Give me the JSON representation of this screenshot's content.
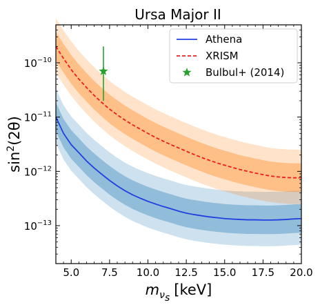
{
  "chart_data": {
    "type": "area",
    "title": "Ursa Major II",
    "xlabel": {
      "base": "m",
      "sub_base": "ν",
      "sub_sub": "s",
      "unit": "[keV]"
    },
    "ylabel": {
      "base": "sin",
      "sup": "2",
      "arg": "(2θ)"
    },
    "xlim": [
      4.0,
      20.0
    ],
    "ylim": [
      2e-14,
      5e-10
    ],
    "y_scale": "log",
    "x_ticks": [
      5.0,
      7.5,
      10.0,
      12.5,
      15.0,
      17.5,
      20.0
    ],
    "x_tick_labels": [
      "5.0",
      "7.5",
      "10.0",
      "12.5",
      "15.0",
      "17.5",
      "20.0"
    ],
    "y_ticks": [
      {
        "value": 1e-13,
        "base": "10",
        "exp": "−13"
      },
      {
        "value": 1e-12,
        "base": "10",
        "exp": "−12"
      },
      {
        "value": 1e-11,
        "base": "10",
        "exp": "−11"
      },
      {
        "value": 1e-10,
        "base": "10",
        "exp": "−10"
      }
    ],
    "grid": false,
    "legend_position": "top-right",
    "x": [
      4.0,
      4.5,
      5.0,
      5.5,
      6.0,
      6.5,
      7.0,
      7.5,
      8.0,
      8.5,
      9.0,
      9.5,
      10.0,
      10.5,
      11.0,
      11.5,
      12.0,
      12.5,
      13.0,
      13.5,
      14.0,
      14.5,
      15.0,
      15.5,
      16.0,
      16.5,
      17.0,
      17.5,
      18.0,
      18.5,
      19.0,
      19.5,
      20.0
    ],
    "series": [
      {
        "name": "Athena",
        "color": "#1f3fe0",
        "band_color": "#1f77b4",
        "line_style": "solid",
        "median": [
          1e-11,
          5e-12,
          3.1e-12,
          2.2e-12,
          1.55e-12,
          1.15e-12,
          8.8e-13,
          6.8e-13,
          5.4e-13,
          4.4e-13,
          3.7e-13,
          3.2e-13,
          2.8e-13,
          2.5e-13,
          2.25e-13,
          2.05e-13,
          1.85e-13,
          1.7e-13,
          1.6e-13,
          1.52e-13,
          1.45e-13,
          1.4e-13,
          1.35e-13,
          1.32e-13,
          1.3e-13,
          1.28e-13,
          1.28e-13,
          1.27e-13,
          1.27e-13,
          1.28e-13,
          1.3e-13,
          1.33e-13,
          1.35e-13
        ],
        "band_inner": {
          "factor_low": 0.55,
          "factor_high": 1.85
        },
        "band_outer": {
          "factor_low": 0.33,
          "factor_high": 3.3
        }
      },
      {
        "name": "XRISM",
        "color": "#ee1c1c",
        "band_color": "#ff7f0e",
        "line_style": "dashed",
        "median": [
          2e-10,
          1.2e-10,
          7.5e-11,
          5e-11,
          3.5e-11,
          2.5e-11,
          1.85e-11,
          1.4e-11,
          1.1e-11,
          8.8e-12,
          7.2e-12,
          6e-12,
          5e-12,
          4.2e-12,
          3.6e-12,
          3.1e-12,
          2.7e-12,
          2.35e-12,
          2.05e-12,
          1.8e-12,
          1.6e-12,
          1.43e-12,
          1.3e-12,
          1.18e-12,
          1.08e-12,
          1e-12,
          9.3e-13,
          8.7e-13,
          8.2e-13,
          7.9e-13,
          7.7e-13,
          7.6e-13,
          7.6e-13
        ],
        "band_inner": {
          "factor_low": 0.55,
          "factor_high": 1.85
        },
        "band_outer": {
          "factor_low": 0.33,
          "factor_high": 3.3
        }
      }
    ],
    "points": [
      {
        "name": "Bulbul+ (2014)",
        "marker": "star",
        "color": "#2ca02c",
        "x": 7.1,
        "y": 7e-11,
        "y_err_low": 2e-11,
        "y_err_high": 2e-10
      }
    ]
  }
}
